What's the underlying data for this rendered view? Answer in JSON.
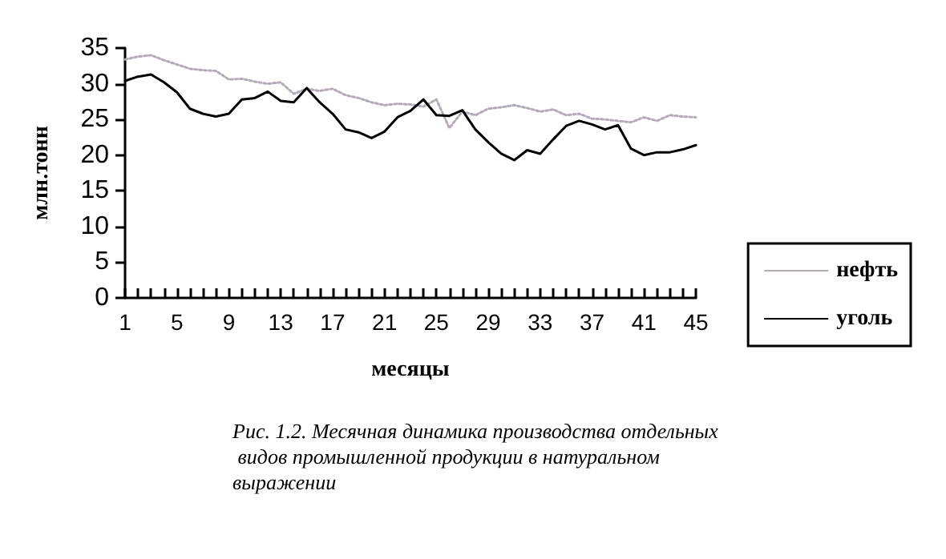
{
  "chart_data": {
    "type": "line",
    "title": "Рис. 1.2. Месячная динамика производства отдельных видов промышленной продукции в натуральном выражении",
    "xlabel": "месяцы",
    "ylabel": "млн.тонн",
    "categories": [
      "1",
      null,
      null,
      null,
      "5",
      null,
      null,
      null,
      "9",
      null,
      null,
      null,
      "13",
      null,
      null,
      null,
      "17",
      null,
      null,
      null,
      "21",
      null,
      null,
      null,
      "25",
      null,
      null,
      null,
      "29",
      null,
      null,
      null,
      "33",
      null,
      null,
      null,
      "37",
      null,
      null,
      null,
      "41",
      null,
      null,
      null,
      "45"
    ],
    "series": [
      {
        "name": "нефть",
        "color": "#b4aab8",
        "line_style": "dotted",
        "values": [
          33.4,
          33.8,
          34,
          33.3,
          32.7,
          32.1,
          31.9,
          31.8,
          30.6,
          30.7,
          30.3,
          30,
          30.2,
          28.6,
          29.3,
          29,
          29.3,
          28.4,
          28,
          27.4,
          27,
          27.2,
          27.1,
          26.8,
          27.8,
          23.8,
          26.1,
          25.6,
          26.5,
          26.7,
          27,
          26.6,
          26.1,
          26.4,
          25.6,
          25.8,
          25.1,
          25,
          24.8,
          24.6,
          25.3,
          24.8,
          25.6,
          25.4,
          25.3
        ]
      },
      {
        "name": "уголь",
        "color": "#000000",
        "line_style": "solid",
        "values": [
          30.4,
          31,
          31.3,
          30.2,
          28.8,
          26.5,
          25.8,
          25.4,
          25.8,
          27.8,
          28,
          28.9,
          27.6,
          27.4,
          29.4,
          27.4,
          25.8,
          23.6,
          23.2,
          22.4,
          23.3,
          25.3,
          26.2,
          27.8,
          25.6,
          25.5,
          26.3,
          23.6,
          21.8,
          20.2,
          19.3,
          20.7,
          20.2,
          22.2,
          24.1,
          24.8,
          24.3,
          23.6,
          24.2,
          20.9,
          20,
          20.4,
          20.4,
          20.8,
          21.4
        ]
      }
    ],
    "ylim": [
      0,
      35
    ],
    "yticks": [
      0,
      5,
      10,
      15,
      20,
      25,
      30,
      35
    ],
    "marker": "none",
    "legend": "right",
    "grid": false
  }
}
